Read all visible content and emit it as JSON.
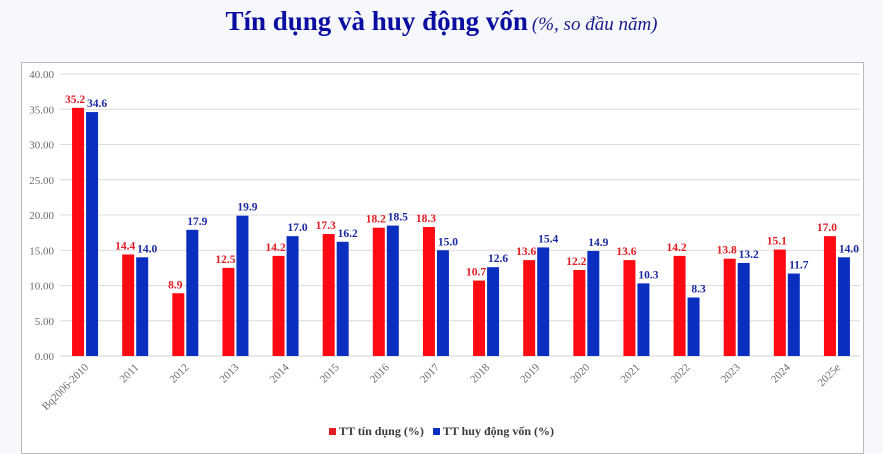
{
  "title": {
    "main": "Tín dụng và huy động vốn",
    "sub": "(%, so đầu năm)"
  },
  "legend": {
    "items": [
      {
        "label": "TT tín dụng (%)",
        "color": "#ff0000"
      },
      {
        "label": "TT huy động vốn (%)",
        "color": "#0a2fc0"
      }
    ]
  },
  "chart_data": {
    "type": "bar",
    "title": "Tín dụng và huy động vốn (%, so đầu năm)",
    "xlabel": "",
    "ylabel": "",
    "ylim": [
      0,
      40
    ],
    "yticks": [
      "0.00",
      "5.00",
      "10.00",
      "15.00",
      "20.00",
      "25.00",
      "30.00",
      "35.00",
      "40.00"
    ],
    "grid": true,
    "legend_position": "bottom",
    "categories": [
      "Bq2006-2010",
      "2011",
      "2012",
      "2013",
      "2014",
      "2015",
      "2016",
      "2017",
      "2018",
      "2019",
      "2020",
      "2021",
      "2022",
      "2023",
      "2024",
      "2025e"
    ],
    "series": [
      {
        "name": "TT tín dụng (%)",
        "color": "#ff0000",
        "values": [
          35.2,
          14.4,
          8.9,
          12.5,
          14.2,
          17.3,
          18.2,
          18.3,
          10.7,
          13.6,
          12.2,
          13.6,
          14.2,
          13.8,
          15.1,
          17.0
        ]
      },
      {
        "name": "TT huy động vốn (%)",
        "color": "#0a2fc0",
        "values": [
          34.6,
          14.0,
          17.9,
          19.9,
          17.0,
          16.2,
          18.5,
          15.0,
          12.6,
          15.4,
          14.9,
          10.3,
          8.3,
          13.2,
          11.7,
          14.0
        ]
      }
    ]
  }
}
